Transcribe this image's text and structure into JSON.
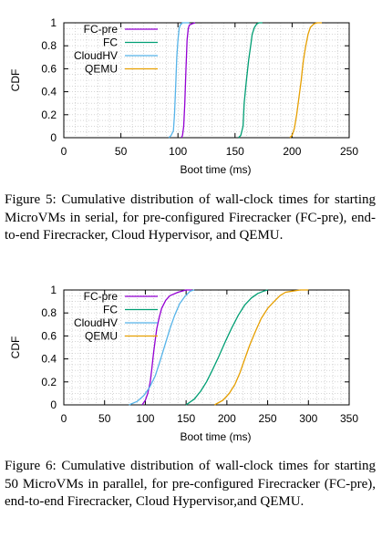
{
  "charts": [
    {
      "id": "chart1",
      "caption": "Figure 5: Cumulative distribution of wall-clock times for starting MicroVMs in serial, for pre-configured Firecracker (FC-pre), end-to-end Firecracker, Cloud Hypervisor, and QEMU.",
      "chart_data": {
        "type": "line",
        "xlabel": "Boot time (ms)",
        "ylabel": "CDF",
        "xlim": [
          0,
          250
        ],
        "ylim": [
          0,
          1
        ],
        "xticks": [
          0,
          50,
          100,
          150,
          200,
          250
        ],
        "yticks": [
          0,
          0.2,
          0.4,
          0.6,
          0.8,
          1
        ],
        "xtick_labels": [
          "0",
          "50",
          "100",
          "150",
          "200",
          "250"
        ],
        "ytick_labels": [
          "0",
          "0.2",
          "0.4",
          "0.6",
          "0.8",
          "1"
        ],
        "grid": true,
        "legend_position": "top-left",
        "series": [
          {
            "name": "FC-pre",
            "color": "#9400d3",
            "x": [
              103,
              104,
              105,
              106,
              107,
              108,
              109,
              110,
              112,
              115
            ],
            "y": [
              0,
              0.02,
              0.1,
              0.3,
              0.6,
              0.85,
              0.95,
              0.98,
              0.99,
              1
            ]
          },
          {
            "name": "FC",
            "color": "#009e73",
            "x": [
              153,
              155,
              157,
              158,
              160,
              162,
              164,
              165,
              167,
              169,
              171,
              174
            ],
            "y": [
              0,
              0.02,
              0.1,
              0.3,
              0.5,
              0.68,
              0.82,
              0.9,
              0.96,
              0.99,
              1,
              1
            ]
          },
          {
            "name": "CloudHV",
            "color": "#56b4e9",
            "x": [
              92,
              94,
              96,
              97,
              98,
              99,
              100,
              101,
              102,
              104,
              107,
              110
            ],
            "y": [
              0,
              0.02,
              0.06,
              0.2,
              0.45,
              0.7,
              0.85,
              0.95,
              0.98,
              1,
              1,
              1
            ]
          },
          {
            "name": "QEMU",
            "color": "#e69f00",
            "x": [
              198,
              200,
              202,
              204,
              206,
              208,
              209,
              210,
              212,
              214,
              216,
              219,
              222,
              226
            ],
            "y": [
              0,
              0.02,
              0.08,
              0.2,
              0.35,
              0.5,
              0.6,
              0.68,
              0.8,
              0.9,
              0.96,
              0.99,
              1,
              1
            ]
          }
        ]
      }
    },
    {
      "id": "chart2",
      "caption": "Figure 6: Cumulative distribution of wall-clock times for starting 50 MicroVMs in parallel, for pre-configured Firecracker (FC-pre), end-to-end Firecracker, Cloud Hypervisor,and QEMU.",
      "chart_data": {
        "type": "line",
        "xlabel": "Boot time (ms)",
        "ylabel": "CDF",
        "xlim": [
          0,
          350
        ],
        "ylim": [
          0,
          1
        ],
        "xticks": [
          0,
          50,
          100,
          150,
          200,
          250,
          300,
          350
        ],
        "yticks": [
          0,
          0.2,
          0.4,
          0.6,
          0.8,
          1
        ],
        "xtick_labels": [
          "0",
          "50",
          "100",
          "150",
          "200",
          "250",
          "300",
          "350"
        ],
        "ytick_labels": [
          "0",
          "0.2",
          "0.4",
          "0.6",
          "0.8",
          "1"
        ],
        "grid": true,
        "legend_position": "top-left",
        "series": [
          {
            "name": "FC-pre",
            "color": "#9400d3",
            "x": [
              96,
              100,
              103,
              106,
              108,
              110,
              112,
              114,
              117,
              120,
              125,
              130,
              140,
              150,
              157
            ],
            "y": [
              0,
              0.04,
              0.1,
              0.2,
              0.32,
              0.45,
              0.56,
              0.66,
              0.76,
              0.84,
              0.91,
              0.95,
              0.98,
              1,
              1
            ]
          },
          {
            "name": "FC",
            "color": "#009e73",
            "x": [
              150,
              160,
              168,
              175,
              182,
              190,
              198,
              206,
              214,
              222,
              230,
              238,
              245,
              250
            ],
            "y": [
              0,
              0.05,
              0.12,
              0.2,
              0.3,
              0.42,
              0.55,
              0.67,
              0.78,
              0.87,
              0.93,
              0.97,
              0.99,
              1
            ]
          },
          {
            "name": "CloudHV",
            "color": "#56b4e9",
            "x": [
              80,
              90,
              98,
              105,
              112,
              118,
              124,
              130,
              136,
              142,
              148,
              155,
              160
            ],
            "y": [
              0,
              0.03,
              0.08,
              0.15,
              0.25,
              0.38,
              0.52,
              0.66,
              0.78,
              0.88,
              0.94,
              0.99,
              1
            ]
          },
          {
            "name": "QEMU",
            "color": "#e69f00",
            "x": [
              185,
              195,
              203,
              210,
              216,
              222,
              228,
              235,
              242,
              250,
              258,
              265,
              272,
              280,
              290,
              300
            ],
            "y": [
              0,
              0.04,
              0.1,
              0.18,
              0.28,
              0.4,
              0.52,
              0.64,
              0.75,
              0.84,
              0.9,
              0.95,
              0.98,
              0.99,
              1,
              1
            ]
          }
        ]
      }
    }
  ]
}
